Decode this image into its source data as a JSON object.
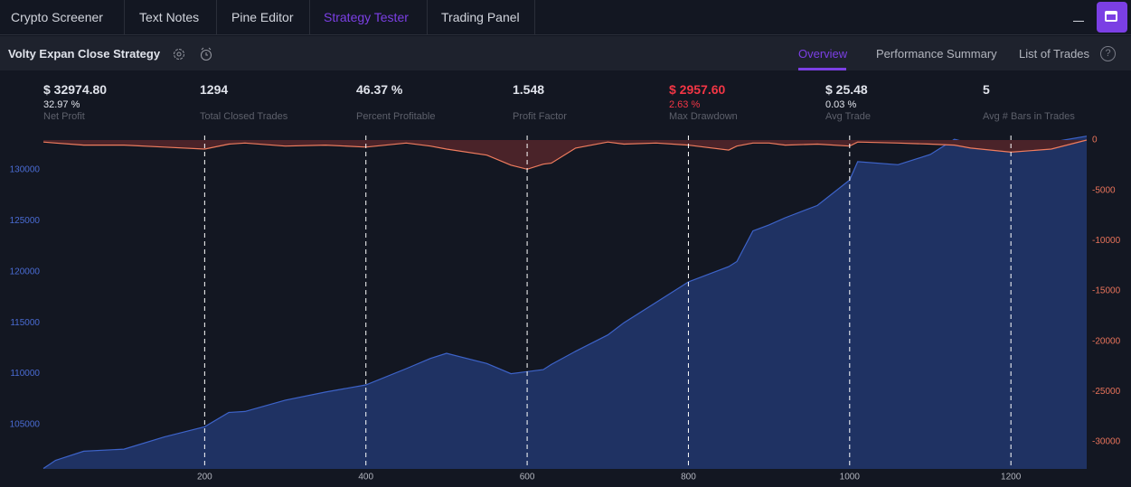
{
  "tabs": [
    {
      "label": "Crypto Screener"
    },
    {
      "label": "Text Notes"
    },
    {
      "label": "Pine Editor"
    },
    {
      "label": "Strategy Tester"
    },
    {
      "label": "Trading Panel"
    }
  ],
  "strategy": {
    "name": "Volty Expan Close Strategy",
    "views": [
      "Overview",
      "Performance Summary",
      "List of Trades"
    ]
  },
  "stats": [
    {
      "value": "$ 32974.80",
      "sub": "32.97 %",
      "label": "Net Profit"
    },
    {
      "value": "1294",
      "label": "Total Closed Trades"
    },
    {
      "value": "46.37 %",
      "label": "Percent Profitable"
    },
    {
      "value": "1.548",
      "label": "Profit Factor"
    },
    {
      "value": "$ 2957.60",
      "sub": "2.63 %",
      "label": "Max Drawdown"
    },
    {
      "value": "$ 25.48",
      "sub": "0.03 %",
      "label": "Avg Trade"
    },
    {
      "value": "5",
      "label": "Avg # Bars in Trades"
    }
  ],
  "chart_data": {
    "type": "area",
    "x": [
      0,
      15,
      50,
      100,
      150,
      200,
      230,
      250,
      300,
      350,
      400,
      450,
      480,
      500,
      550,
      580,
      600,
      620,
      630,
      660,
      700,
      720,
      760,
      800,
      850,
      860,
      880,
      900,
      920,
      960,
      1000,
      1010,
      1060,
      1100,
      1130,
      1150,
      1200,
      1250,
      1294
    ],
    "series": [
      {
        "color": "#3d63c9",
        "fill": "#1f3263",
        "values": [
          100700,
          101500,
          102400,
          102600,
          103800,
          104800,
          106200,
          106300,
          107400,
          108200,
          108900,
          110500,
          111500,
          112000,
          111000,
          110000,
          110200,
          110400,
          110900,
          112200,
          113800,
          115000,
          117000,
          119000,
          120500,
          121000,
          124000,
          124600,
          125300,
          126500,
          129000,
          130800,
          130500,
          131500,
          133000,
          132600,
          132400,
          132700,
          133300
        ]
      },
      {
        "color": "#f07c5e",
        "fill": "#4a2329",
        "axis": "y2",
        "values": [
          -200,
          -300,
          -500,
          -500,
          -700,
          -900,
          -400,
          -300,
          -600,
          -500,
          -700,
          -300,
          -600,
          -900,
          -1500,
          -2500,
          -2900,
          -2400,
          -2300,
          -800,
          -200,
          -400,
          -300,
          -500,
          -1000,
          -600,
          -300,
          -300,
          -500,
          -400,
          -600,
          -200,
          -300,
          -400,
          -500,
          -800,
          -1200,
          -900,
          0
        ]
      }
    ],
    "xlim": [
      0,
      1294
    ],
    "xticks": [
      200,
      400,
      600,
      800,
      1000,
      1200
    ],
    "ylim": [
      100660,
      133360
    ],
    "yticks": [
      105000,
      110000,
      115000,
      120000,
      125000,
      130000
    ],
    "y2lim": [
      -32700,
      450
    ],
    "y2ticks": [
      0,
      -5000,
      -10000,
      -15000,
      -20000,
      -25000,
      -30000
    ],
    "xgrid": true
  }
}
